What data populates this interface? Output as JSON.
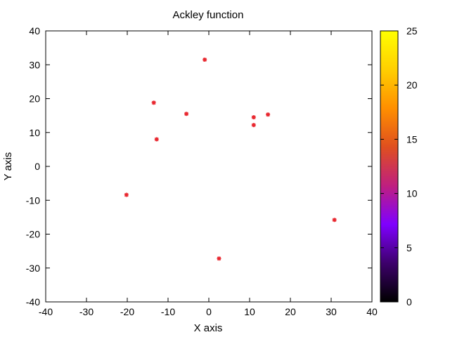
{
  "chart_data": {
    "type": "scatter",
    "title": "Ackley function",
    "xlabel": "X axis",
    "ylabel": "Y axis",
    "xlim": [
      -40,
      40
    ],
    "ylim": [
      -40,
      40
    ],
    "x_ticks": [
      -40,
      -30,
      -20,
      -10,
      0,
      10,
      20,
      30,
      40
    ],
    "y_ticks": [
      -40,
      -30,
      -20,
      -10,
      0,
      10,
      20,
      30,
      40
    ],
    "grid": false,
    "legend": "none",
    "point_color": "#e8262e",
    "points": [
      {
        "x": -1,
        "y": 31.5
      },
      {
        "x": -13.5,
        "y": 18.8
      },
      {
        "x": -5.5,
        "y": 15.5
      },
      {
        "x": 11,
        "y": 14.5
      },
      {
        "x": 14.5,
        "y": 15.3
      },
      {
        "x": 11,
        "y": 12.2
      },
      {
        "x": -12.8,
        "y": 8
      },
      {
        "x": -20.2,
        "y": -8.4
      },
      {
        "x": 30.8,
        "y": -15.8
      },
      {
        "x": 2.5,
        "y": -27.2
      }
    ],
    "colorbar": {
      "range": [
        0,
        25
      ],
      "ticks": [
        0,
        5,
        10,
        15,
        20,
        25
      ],
      "palette": [
        "#000000",
        "#3d006b",
        "#7f00ff",
        "#bf1f7f",
        "#df4f1f",
        "#ff8f00",
        "#ffcf00",
        "#ffff00"
      ]
    }
  }
}
